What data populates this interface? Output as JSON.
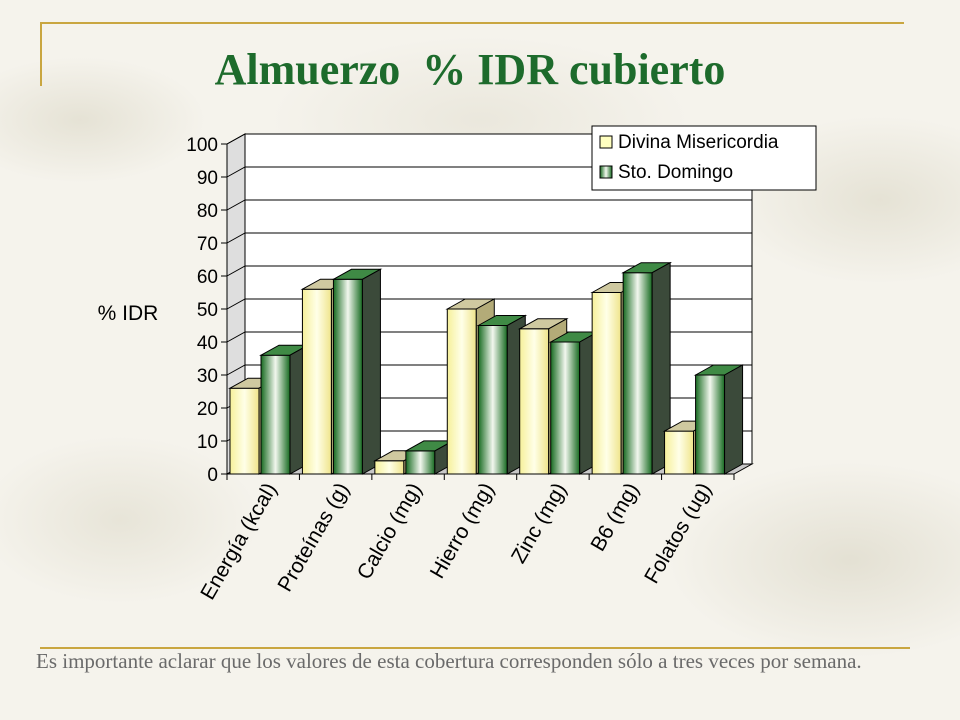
{
  "slide": {
    "title": "Almuerzo  % IDR cubierto",
    "note": "Es importante aclarar que los valores de esta cobertura corresponden sólo a tres veces por semana."
  },
  "chart_data": {
    "type": "bar",
    "title": "",
    "xlabel": "",
    "ylabel": "% IDR",
    "ylim": [
      0,
      100
    ],
    "yticks": [
      0,
      10,
      20,
      30,
      40,
      50,
      60,
      70,
      80,
      90,
      100
    ],
    "grid": true,
    "legend_position": "top-right",
    "categories": [
      "Energía (kcal)",
      "Proteínas (g)",
      "Calcio (mg)",
      "Hierro (mg)",
      "Zinc (mg)",
      "B6 (mg)",
      "Folatos (ug)"
    ],
    "series": [
      {
        "name": "Divina Misericordia",
        "color": "#ffffc0",
        "values": [
          26,
          56,
          4,
          50,
          44,
          55,
          13
        ]
      },
      {
        "name": "Sto. Domingo",
        "color": "#1f7a2a",
        "values": [
          36,
          59,
          7,
          45,
          40,
          61,
          30
        ]
      }
    ]
  }
}
